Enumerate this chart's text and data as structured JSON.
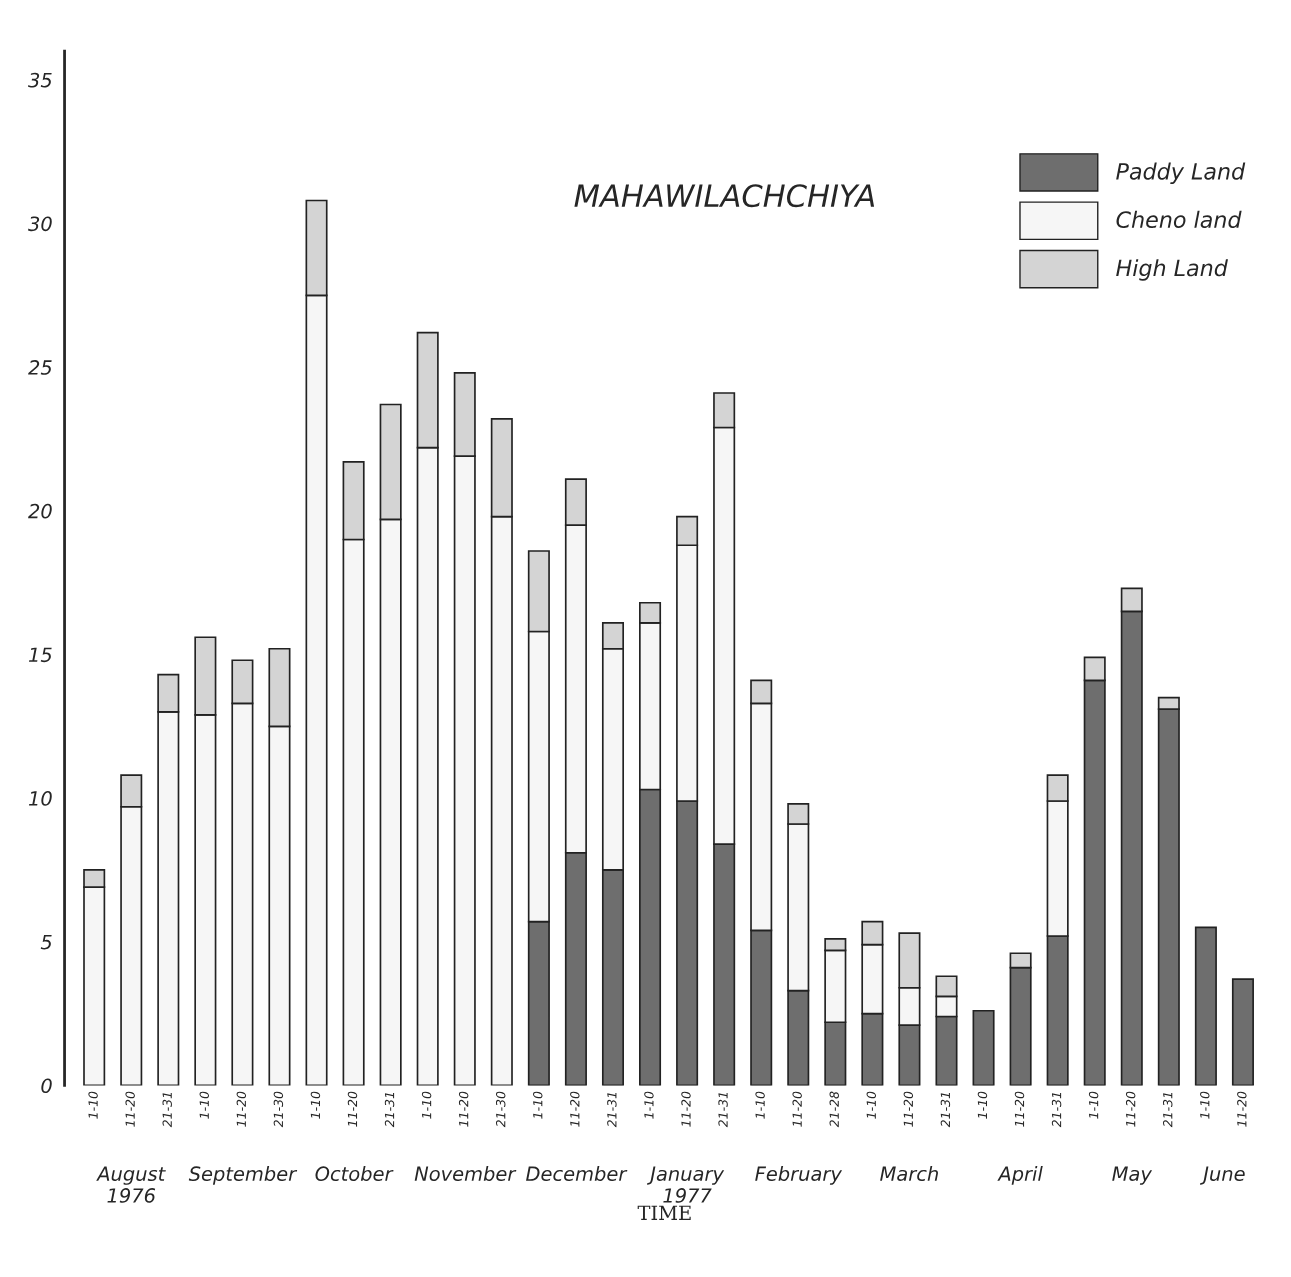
{
  "chart_data": {
    "type": "bar",
    "stacked": true,
    "title": "MAHAWILACHCHIYA",
    "xlabel": "TIME",
    "categories": [
      "1-10",
      "11-20",
      "21-31",
      "1-10",
      "11-20",
      "21-30",
      "1-10",
      "11-20",
      "21-31",
      "1-10",
      "11-20",
      "21-30",
      "1-10",
      "11-20",
      "21-31",
      "1-10",
      "11-20",
      "21-31",
      "1-10",
      "11-20",
      "21-28",
      "1-10",
      "11-20",
      "21-31",
      "1-10",
      "11-20",
      "21-31",
      "1-10",
      "11-20",
      "21-31",
      "1-10",
      "11-20"
    ],
    "series": [
      {
        "name": "Paddy Land",
        "color": "#6e6e6e",
        "values": [
          null,
          null,
          null,
          null,
          null,
          null,
          null,
          null,
          null,
          null,
          null,
          null,
          5.7,
          8.1,
          7.5,
          10.3,
          9.9,
          8.4,
          5.4,
          3.3,
          2.2,
          2.5,
          2.1,
          2.4,
          2.6,
          4.1,
          5.2,
          14.1,
          16.5,
          13.1,
          5.5,
          3.7
        ]
      },
      {
        "name": "Cheno land",
        "color": "#f6f6f6",
        "values": [
          6.9,
          9.7,
          13.0,
          12.9,
          13.3,
          12.5,
          27.5,
          19.0,
          19.7,
          22.2,
          21.9,
          19.8,
          10.1,
          11.4,
          7.7,
          5.8,
          8.9,
          14.5,
          7.9,
          5.8,
          2.5,
          2.4,
          1.3,
          0.7,
          null,
          null,
          4.7,
          null,
          null,
          null,
          null,
          null
        ]
      },
      {
        "name": "High Land",
        "color": "#d4d4d4",
        "values": [
          0.6,
          1.1,
          1.3,
          2.7,
          1.5,
          2.7,
          3.3,
          2.7,
          4.0,
          4.0,
          2.9,
          3.4,
          2.8,
          1.6,
          0.9,
          0.7,
          1.0,
          1.2,
          0.8,
          0.7,
          0.4,
          0.8,
          1.9,
          0.7,
          null,
          0.5,
          0.9,
          0.8,
          0.8,
          0.4,
          null,
          null
        ]
      }
    ],
    "annotations": [
      "August\n1976",
      "September",
      "October",
      "November",
      "December",
      "January\n1977",
      "February",
      "March",
      "April",
      "May",
      "June"
    ],
    "ylim": [
      0,
      36
    ],
    "yticks": [
      0,
      5,
      10,
      15,
      20,
      25,
      30,
      35
    ],
    "grid": false,
    "legend": "top right"
  }
}
